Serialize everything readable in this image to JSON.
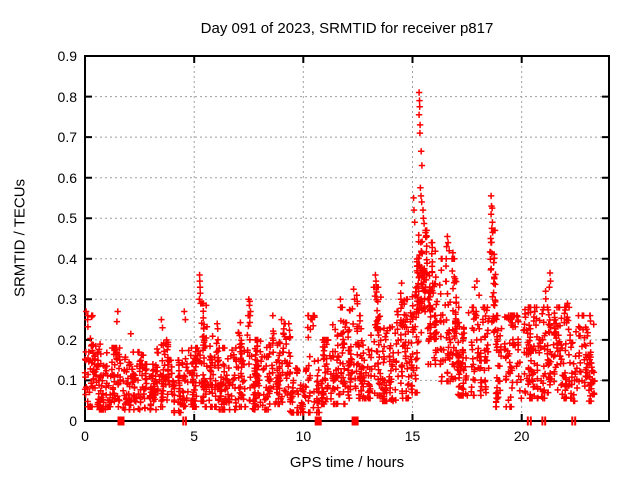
{
  "colors": {
    "marker": "#ff0000",
    "grid": "#9e9e9e",
    "axis": "#000000",
    "background": "#ffffff",
    "text": "#000000"
  },
  "chart_data": {
    "type": "scatter",
    "marker": "plus",
    "title": "Day 091 of 2023, SRMTID for receiver p817",
    "xlabel": "GPS time / hours",
    "ylabel": "SRMTID / TECUs",
    "xlim": [
      0,
      24
    ],
    "ylim": [
      0,
      0.9
    ],
    "xticks": [
      {
        "v": 0,
        "label": "0"
      },
      {
        "v": 5,
        "label": "5"
      },
      {
        "v": 10,
        "label": "10"
      },
      {
        "v": 15,
        "label": "15"
      },
      {
        "v": 20,
        "label": "20"
      }
    ],
    "yticks": [
      {
        "v": 0.0,
        "label": "0"
      },
      {
        "v": 0.1,
        "label": "0.1"
      },
      {
        "v": 0.2,
        "label": "0.2"
      },
      {
        "v": 0.3,
        "label": "0.3"
      },
      {
        "v": 0.4,
        "label": "0.4"
      },
      {
        "v": 0.5,
        "label": "0.5"
      },
      {
        "v": 0.6,
        "label": "0.6"
      },
      {
        "v": 0.7,
        "label": "0.7"
      },
      {
        "v": 0.8,
        "label": "0.8"
      },
      {
        "v": 0.9,
        "label": "0.9"
      }
    ],
    "grid": true,
    "grid_style": "dashed",
    "legend": "none",
    "seed": 20230911,
    "baseline_segments": [
      [
        0.0,
        0.35,
        0.05,
        0.26,
        40
      ],
      [
        0.35,
        1.0,
        0.04,
        0.2,
        70
      ],
      [
        1.0,
        1.62,
        0.05,
        0.18,
        60
      ],
      [
        1.75,
        2.7,
        0.04,
        0.17,
        80
      ],
      [
        2.7,
        3.3,
        0.04,
        0.14,
        55
      ],
      [
        3.3,
        3.8,
        0.05,
        0.2,
        50
      ],
      [
        3.8,
        4.45,
        0.03,
        0.15,
        55
      ],
      [
        4.45,
        4.75,
        0.05,
        0.24,
        25
      ],
      [
        4.75,
        5.15,
        0.05,
        0.18,
        40
      ],
      [
        5.15,
        5.45,
        0.07,
        0.29,
        35
      ],
      [
        5.45,
        6.1,
        0.05,
        0.24,
        60
      ],
      [
        6.1,
        7.0,
        0.04,
        0.18,
        80
      ],
      [
        7.0,
        7.65,
        0.05,
        0.26,
        55
      ],
      [
        7.65,
        8.4,
        0.04,
        0.2,
        75
      ],
      [
        8.4,
        9.4,
        0.06,
        0.24,
        95
      ],
      [
        9.4,
        10.15,
        0.03,
        0.13,
        50
      ],
      [
        10.15,
        10.8,
        0.03,
        0.26,
        45
      ],
      [
        10.8,
        11.35,
        0.06,
        0.2,
        50
      ],
      [
        11.35,
        12.05,
        0.06,
        0.28,
        65
      ],
      [
        12.05,
        12.55,
        0.08,
        0.32,
        50
      ],
      [
        12.55,
        13.1,
        0.08,
        0.26,
        55
      ],
      [
        13.1,
        13.6,
        0.09,
        0.33,
        50
      ],
      [
        13.6,
        14.35,
        0.07,
        0.27,
        70
      ],
      [
        14.35,
        14.95,
        0.08,
        0.3,
        60
      ],
      [
        14.95,
        15.25,
        0.1,
        0.33,
        40
      ],
      [
        15.2,
        15.7,
        0.28,
        0.47,
        80
      ],
      [
        15.65,
        16.3,
        0.2,
        0.44,
        80
      ],
      [
        16.3,
        17.0,
        0.14,
        0.4,
        80
      ],
      [
        17.0,
        18.3,
        0.09,
        0.28,
        110
      ],
      [
        18.3,
        18.55,
        0.1,
        0.28,
        25
      ],
      [
        18.55,
        18.8,
        0.27,
        0.47,
        30
      ],
      [
        18.8,
        19.9,
        0.05,
        0.26,
        95
      ],
      [
        19.9,
        21.05,
        0.08,
        0.28,
        100
      ],
      [
        21.05,
        21.5,
        0.1,
        0.32,
        45
      ],
      [
        21.5,
        22.3,
        0.08,
        0.28,
        80
      ],
      [
        22.3,
        23.35,
        0.07,
        0.26,
        90
      ]
    ],
    "outlier_points": [
      [
        0.05,
        0.27
      ],
      [
        0.12,
        0.25
      ],
      [
        1.5,
        0.27
      ],
      [
        1.46,
        0.245
      ],
      [
        2.1,
        0.215
      ],
      [
        3.5,
        0.25
      ],
      [
        3.55,
        0.23
      ],
      [
        4.55,
        0.27
      ],
      [
        4.6,
        0.25
      ],
      [
        5.25,
        0.36
      ],
      [
        5.26,
        0.345
      ],
      [
        5.27,
        0.33
      ],
      [
        5.28,
        0.315
      ],
      [
        5.24,
        0.3
      ],
      [
        5.3,
        0.29
      ],
      [
        5.55,
        0.285
      ],
      [
        7.5,
        0.3
      ],
      [
        7.55,
        0.295
      ],
      [
        7.53,
        0.285
      ],
      [
        7.58,
        0.27
      ],
      [
        8.6,
        0.26
      ],
      [
        9.0,
        0.25
      ],
      [
        10.4,
        0.25
      ],
      [
        10.45,
        0.235
      ],
      [
        11.7,
        0.3
      ],
      [
        11.75,
        0.28
      ],
      [
        12.3,
        0.325
      ],
      [
        12.35,
        0.3
      ],
      [
        12.45,
        0.31
      ],
      [
        12.6,
        0.26
      ],
      [
        13.3,
        0.36
      ],
      [
        13.33,
        0.345
      ],
      [
        13.26,
        0.33
      ],
      [
        14.5,
        0.34
      ],
      [
        14.46,
        0.315
      ],
      [
        15.05,
        0.55
      ],
      [
        15.07,
        0.52
      ],
      [
        15.1,
        0.49
      ],
      [
        15.3,
        0.81
      ],
      [
        15.32,
        0.79
      ],
      [
        15.33,
        0.775
      ],
      [
        15.3,
        0.755
      ],
      [
        15.35,
        0.73
      ],
      [
        15.34,
        0.71
      ],
      [
        15.4,
        0.665
      ],
      [
        15.43,
        0.63
      ],
      [
        15.36,
        0.575
      ],
      [
        15.39,
        0.555
      ],
      [
        15.42,
        0.54
      ],
      [
        15.48,
        0.52
      ],
      [
        15.5,
        0.5
      ],
      [
        15.53,
        0.487
      ],
      [
        16.6,
        0.455
      ],
      [
        16.63,
        0.44
      ],
      [
        16.56,
        0.43
      ],
      [
        16.68,
        0.42
      ],
      [
        16.85,
        0.415
      ],
      [
        16.88,
        0.4
      ],
      [
        17.85,
        0.33
      ],
      [
        17.95,
        0.345
      ],
      [
        18.05,
        0.31
      ],
      [
        18.6,
        0.555
      ],
      [
        18.62,
        0.53
      ],
      [
        18.65,
        0.525
      ],
      [
        18.6,
        0.51
      ],
      [
        18.66,
        0.49
      ],
      [
        18.63,
        0.475
      ],
      [
        18.67,
        0.465
      ],
      [
        18.58,
        0.45
      ],
      [
        20.6,
        0.27
      ],
      [
        21.3,
        0.365
      ],
      [
        21.32,
        0.345
      ],
      [
        21.27,
        0.33
      ],
      [
        22.1,
        0.29
      ]
    ],
    "zero_marks": [
      [
        1.65,
        7
      ],
      [
        4.5,
        2
      ],
      [
        4.62,
        2
      ],
      [
        10.68,
        7
      ],
      [
        12.37,
        7
      ],
      [
        20.28,
        2
      ],
      [
        20.42,
        2
      ],
      [
        20.95,
        2
      ],
      [
        21.08,
        2
      ],
      [
        22.32,
        2
      ],
      [
        22.45,
        2
      ]
    ]
  }
}
